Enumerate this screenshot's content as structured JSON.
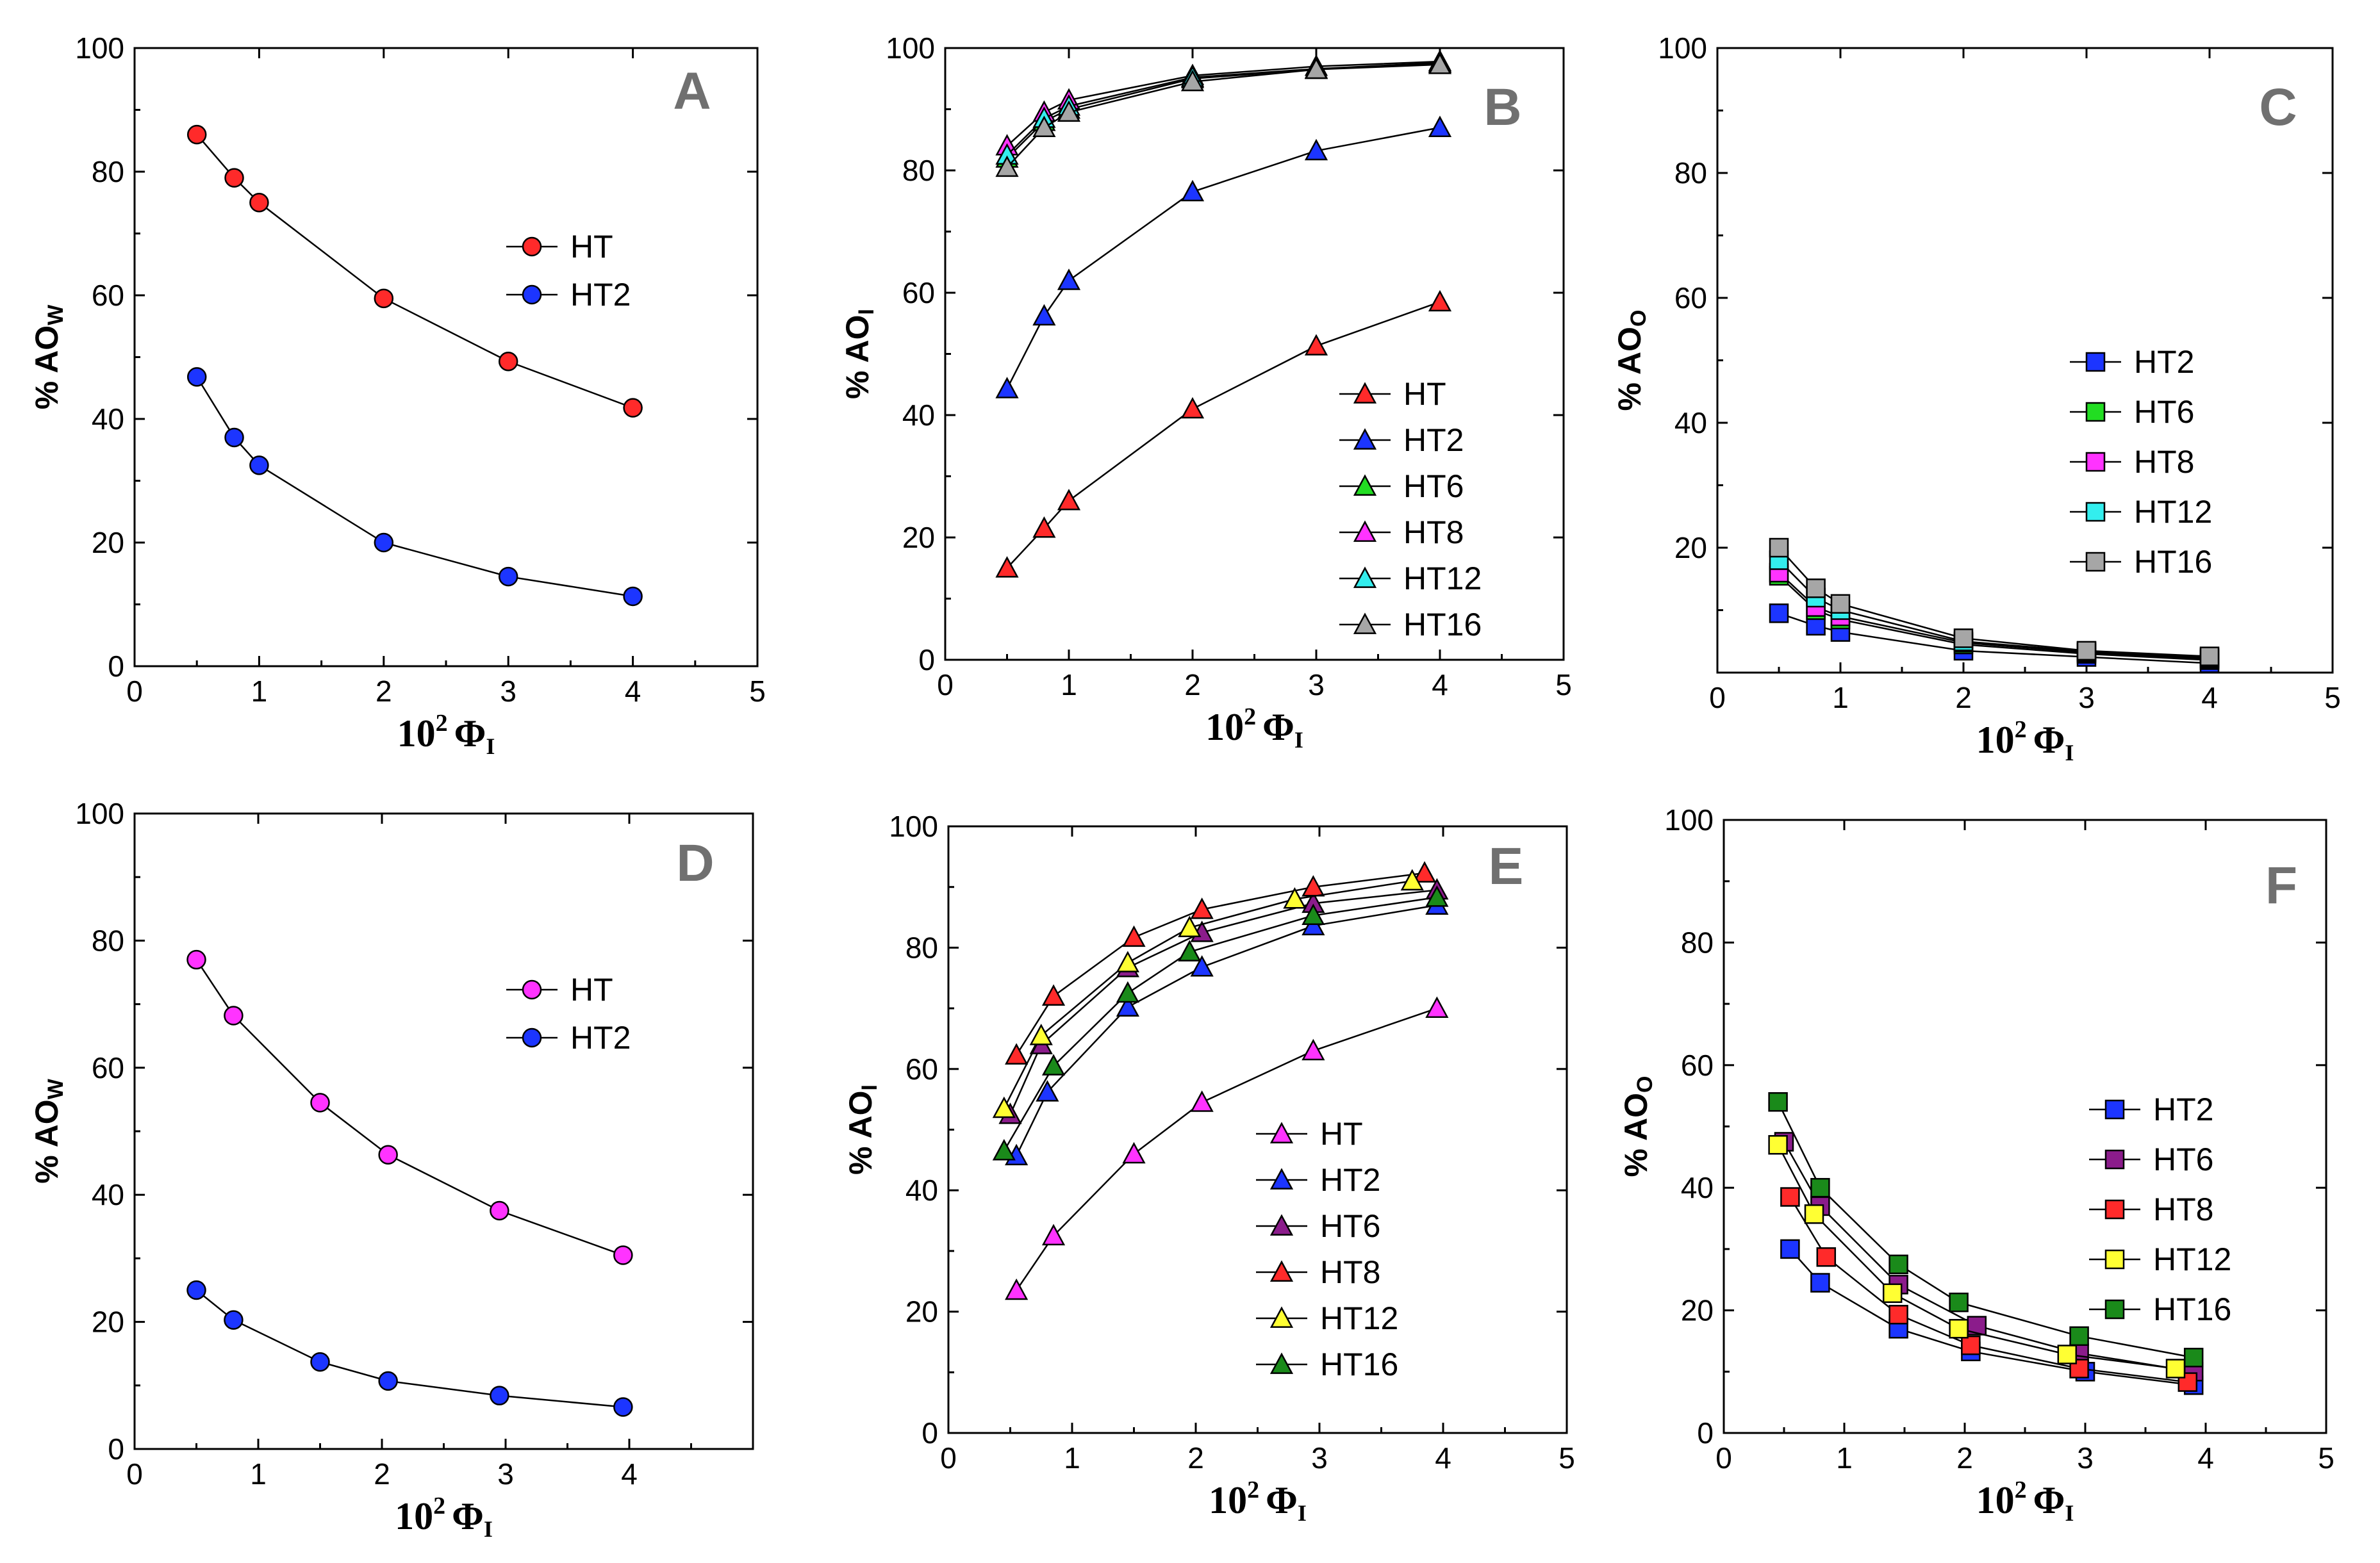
{
  "chart_data": [
    {
      "panel": "A",
      "type": "scatter",
      "marker": "circle",
      "xlabel": "10",
      "xlabel_sup": "2",
      "xlabel_phi": "Φ",
      "xlabel_sub": "I",
      "ylabel": "%  AO",
      "ylabel_sub": "W",
      "xlim": [
        0,
        5
      ],
      "ylim": [
        0,
        100
      ],
      "xticks": [
        0,
        1,
        2,
        3,
        4,
        5
      ],
      "yticks": [
        0,
        20,
        40,
        60,
        80,
        100
      ],
      "legend": "center-right",
      "series": [
        {
          "name": "HT",
          "color": "#ff2a2a",
          "x": [
            0.5,
            0.8,
            1,
            2,
            3,
            4
          ],
          "y": [
            86,
            79,
            75,
            59.5,
            49.3,
            41.8
          ]
        },
        {
          "name": "HT2",
          "color": "#1c35ff",
          "x": [
            0.5,
            0.8,
            1,
            2,
            3,
            4
          ],
          "y": [
            46.8,
            37,
            32.5,
            20,
            14.5,
            11.3
          ]
        }
      ]
    },
    {
      "panel": "B",
      "type": "scatter",
      "marker": "triangle",
      "xlabel": "10",
      "xlabel_sup": "2",
      "xlabel_phi": "Φ",
      "xlabel_sub": "I",
      "ylabel": "% AO",
      "ylabel_sub": "I",
      "xlim": [
        0,
        5
      ],
      "ylim": [
        0,
        100
      ],
      "xticks": [
        0,
        1,
        2,
        3,
        4,
        5
      ],
      "yticks": [
        0,
        20,
        40,
        60,
        80,
        100
      ],
      "legend": "bottom-right",
      "series": [
        {
          "name": "HT",
          "color": "#ff2a2a",
          "x": [
            0.5,
            0.8,
            1,
            2,
            3,
            4
          ],
          "y": [
            15,
            21.5,
            26,
            41,
            51.3,
            58.5
          ]
        },
        {
          "name": "HT2",
          "color": "#1c35ff",
          "x": [
            0.5,
            0.8,
            1,
            2,
            3,
            4
          ],
          "y": [
            44.3,
            56.2,
            62,
            76.5,
            83.2,
            87
          ]
        },
        {
          "name": "HT6",
          "color": "#22dd22",
          "x": [
            0.5,
            0.8,
            1,
            2,
            3,
            4
          ],
          "y": [
            82,
            88,
            90,
            95,
            96.5,
            97.5
          ]
        },
        {
          "name": "HT8",
          "color": "#ff33ff",
          "x": [
            0.5,
            0.8,
            1,
            2,
            3,
            4
          ],
          "y": [
            84,
            89.5,
            91.5,
            95.5,
            97,
            97.8
          ]
        },
        {
          "name": "HT12",
          "color": "#33eeee",
          "x": [
            0.5,
            0.8,
            1,
            2,
            3,
            4
          ],
          "y": [
            82.5,
            88.5,
            90.5,
            95.2,
            96.6,
            97.6
          ]
        },
        {
          "name": "HT16",
          "color": "#a6a6a6",
          "x": [
            0.5,
            0.8,
            1,
            2,
            3,
            4
          ],
          "y": [
            80.5,
            87,
            89.5,
            94.5,
            96.5,
            97.3
          ]
        }
      ]
    },
    {
      "panel": "C",
      "type": "scatter",
      "marker": "square",
      "xlabel": "10",
      "xlabel_sup": "2",
      "xlabel_phi": "Φ",
      "xlabel_sub": "I",
      "ylabel": "% AO",
      "ylabel_sub": "O",
      "xlim": [
        0,
        5
      ],
      "ylim": [
        0,
        100
      ],
      "xticks": [
        0,
        1,
        2,
        3,
        4,
        5
      ],
      "yticks": [
        20,
        40,
        60,
        80,
        100
      ],
      "legend": "center-right",
      "series": [
        {
          "name": "HT2",
          "color": "#1c35ff",
          "x": [
            0.5,
            0.8,
            1,
            2,
            3,
            4
          ],
          "y": [
            9.5,
            7.5,
            6.5,
            3.5,
            2.5,
            1.5
          ]
        },
        {
          "name": "HT6",
          "color": "#22dd22",
          "x": [
            0.5,
            0.8,
            1,
            2,
            3,
            4
          ],
          "y": [
            15.5,
            10,
            8.5,
            4.5,
            3,
            2
          ]
        },
        {
          "name": "HT8",
          "color": "#ff33ff",
          "x": [
            0.5,
            0.8,
            1,
            2,
            3,
            4
          ],
          "y": [
            16,
            10.5,
            9,
            4.8,
            3.2,
            2.2
          ]
        },
        {
          "name": "HT12",
          "color": "#33eeee",
          "x": [
            0.5,
            0.8,
            1,
            2,
            3,
            4
          ],
          "y": [
            18,
            12,
            10,
            5,
            3.4,
            2.4
          ]
        },
        {
          "name": "HT16",
          "color": "#a6a6a6",
          "x": [
            0.5,
            0.8,
            1,
            2,
            3,
            4
          ],
          "y": [
            20,
            13.5,
            11,
            5.5,
            3.5,
            2.6
          ]
        }
      ]
    },
    {
      "panel": "D",
      "type": "scatter",
      "marker": "circle",
      "xlabel": "10",
      "xlabel_sup": "2",
      "xlabel_phi": "Φ",
      "xlabel_sub": "I",
      "ylabel": "% AO",
      "ylabel_sub": "W",
      "xlim": [
        0,
        5
      ],
      "ylim": [
        0,
        100
      ],
      "xticks": [
        0,
        1,
        2,
        3,
        4
      ],
      "yticks": [
        0,
        20,
        40,
        60,
        80,
        100
      ],
      "legend": "center-right",
      "series": [
        {
          "name": "HT",
          "color": "#ff33ff",
          "x": [
            0.5,
            0.8,
            1.5,
            2.05,
            2.95,
            3.95
          ],
          "y": [
            77,
            68.2,
            54.5,
            46.3,
            37.5,
            30.5
          ]
        },
        {
          "name": "HT2",
          "color": "#1c35ff",
          "x": [
            0.5,
            0.8,
            1.5,
            2.05,
            2.95,
            3.95
          ],
          "y": [
            25,
            20.3,
            13.7,
            10.7,
            8.4,
            6.6
          ]
        }
      ]
    },
    {
      "panel": "E",
      "type": "scatter",
      "marker": "triangle",
      "xlabel": "10",
      "xlabel_sup": "2",
      "xlabel_phi": "Φ",
      "xlabel_sub": "I",
      "ylabel": "% AO",
      "ylabel_sub": "I",
      "xlim": [
        0,
        5
      ],
      "ylim": [
        0,
        100
      ],
      "xticks": [
        0,
        1,
        2,
        3,
        4,
        5
      ],
      "yticks": [
        0,
        20,
        40,
        60,
        80,
        100
      ],
      "legend": "bottom-right",
      "series": [
        {
          "name": "HT",
          "color": "#ff33ff",
          "x": [
            0.55,
            0.85,
            1.5,
            2.05,
            2.95,
            3.95
          ],
          "y": [
            23.5,
            32.5,
            46,
            54.5,
            63,
            70
          ]
        },
        {
          "name": "HT2",
          "color": "#1c35ff",
          "x": [
            0.55,
            0.8,
            1.45,
            2.05,
            2.95,
            3.95
          ],
          "y": [
            45.7,
            56.2,
            70.2,
            76.8,
            83.6,
            87
          ]
        },
        {
          "name": "HT6",
          "color": "#8b1c8b",
          "x": [
            0.5,
            0.75,
            1.45,
            2.05,
            2.95,
            3.95
          ],
          "y": [
            52.5,
            64,
            76.7,
            82.5,
            87.3,
            89.5
          ]
        },
        {
          "name": "HT8",
          "color": "#ff2a2a",
          "x": [
            0.55,
            0.85,
            1.5,
            2.05,
            2.95,
            3.85
          ],
          "y": [
            62.3,
            72,
            81.7,
            86.3,
            90,
            92.3
          ]
        },
        {
          "name": "HT12",
          "color": "#ffff33",
          "x": [
            0.45,
            0.75,
            1.45,
            1.95,
            2.8,
            3.75
          ],
          "y": [
            53.5,
            65.5,
            77.5,
            83.3,
            88,
            91
          ]
        },
        {
          "name": "HT16",
          "color": "#1a8a1a",
          "x": [
            0.45,
            0.85,
            1.45,
            1.95,
            2.95,
            3.95
          ],
          "y": [
            46.5,
            60.5,
            72.5,
            79.3,
            85.3,
            88.3
          ]
        }
      ]
    },
    {
      "panel": "F",
      "type": "scatter",
      "marker": "square",
      "xlabel": "10",
      "xlabel_sup": "2",
      "xlabel_phi": "Φ",
      "xlabel_sub": "I",
      "ylabel": "% AO",
      "ylabel_sub": "O",
      "xlim": [
        0,
        5
      ],
      "ylim": [
        0,
        100
      ],
      "xticks": [
        0,
        1,
        2,
        3,
        4,
        5
      ],
      "yticks": [
        0,
        20,
        40,
        60,
        80,
        100
      ],
      "legend": "center-right",
      "series": [
        {
          "name": "HT2",
          "color": "#1c35ff",
          "x": [
            0.55,
            0.8,
            1.45,
            2.05,
            3.0,
            3.9
          ],
          "y": [
            30,
            24.5,
            17,
            13.3,
            10,
            7.8
          ]
        },
        {
          "name": "HT6",
          "color": "#8b1c8b",
          "x": [
            0.5,
            0.8,
            1.45,
            2.1,
            2.95,
            3.9
          ],
          "y": [
            47.5,
            37,
            24.2,
            17.5,
            13,
            10
          ]
        },
        {
          "name": "HT8",
          "color": "#ff2a2a",
          "x": [
            0.55,
            0.85,
            1.45,
            2.05,
            2.95,
            3.85
          ],
          "y": [
            38.5,
            28.7,
            19.3,
            14.3,
            10.5,
            8.3
          ]
        },
        {
          "name": "HT12",
          "color": "#ffff33",
          "x": [
            0.45,
            0.75,
            1.4,
            1.95,
            2.85,
            3.75
          ],
          "y": [
            47,
            35.7,
            22.8,
            17,
            12.8,
            10.5
          ]
        },
        {
          "name": "HT16",
          "color": "#1a8a1a",
          "x": [
            0.45,
            0.8,
            1.45,
            1.95,
            2.95,
            3.9
          ],
          "y": [
            54,
            40,
            27.5,
            21.3,
            15.8,
            12.3
          ]
        }
      ]
    }
  ]
}
